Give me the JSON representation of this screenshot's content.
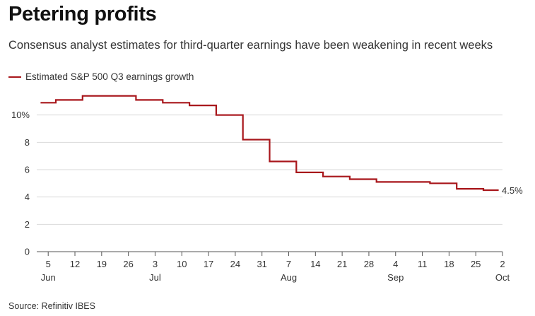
{
  "chart_data": {
    "type": "line",
    "step": true,
    "title": "Petering profits",
    "subtitle": "Consensus analyst estimates for third-quarter earnings have been weakening in recent weeks",
    "source": "Source: Refinitiv IBES",
    "legend": {
      "placement": "top-left",
      "entries": [
        "Estimated S&P 500 Q3 earnings growth"
      ]
    },
    "series": [
      {
        "name": "Estimated S&P 500 Q3 earnings growth",
        "color": "#a8161b",
        "points": [
          {
            "x": "2023-06-03",
            "y": 10.9
          },
          {
            "x": "2023-06-07",
            "y": 11.1
          },
          {
            "x": "2023-06-14",
            "y": 11.4
          },
          {
            "x": "2023-06-28",
            "y": 11.1
          },
          {
            "x": "2023-07-05",
            "y": 10.9
          },
          {
            "x": "2023-07-12",
            "y": 10.7
          },
          {
            "x": "2023-07-19",
            "y": 10.0
          },
          {
            "x": "2023-07-26",
            "y": 8.2
          },
          {
            "x": "2023-08-02",
            "y": 6.6
          },
          {
            "x": "2023-08-09",
            "y": 5.8
          },
          {
            "x": "2023-08-16",
            "y": 5.5
          },
          {
            "x": "2023-08-23",
            "y": 5.3
          },
          {
            "x": "2023-08-30",
            "y": 5.1
          },
          {
            "x": "2023-09-13",
            "y": 5.0
          },
          {
            "x": "2023-09-20",
            "y": 4.6
          },
          {
            "x": "2023-09-27",
            "y": 4.5
          },
          {
            "x": "2023-10-01",
            "y": 4.5
          }
        ]
      }
    ],
    "end_label": "4.5%",
    "x_axis": {
      "tick_labels": [
        {
          "date": "2023-06-05",
          "label": "5",
          "month_label": "Jun"
        },
        {
          "date": "2023-06-12",
          "label": "12"
        },
        {
          "date": "2023-06-19",
          "label": "19"
        },
        {
          "date": "2023-06-26",
          "label": "26"
        },
        {
          "date": "2023-07-03",
          "label": "3",
          "month_label": "Jul"
        },
        {
          "date": "2023-07-10",
          "label": "10"
        },
        {
          "date": "2023-07-17",
          "label": "17"
        },
        {
          "date": "2023-07-24",
          "label": "24"
        },
        {
          "date": "2023-07-31",
          "label": "31"
        },
        {
          "date": "2023-08-07",
          "label": "7",
          "month_label": "Aug"
        },
        {
          "date": "2023-08-14",
          "label": "14"
        },
        {
          "date": "2023-08-21",
          "label": "21"
        },
        {
          "date": "2023-08-28",
          "label": "28"
        },
        {
          "date": "2023-09-04",
          "label": "4",
          "month_label": "Sep"
        },
        {
          "date": "2023-09-11",
          "label": "11"
        },
        {
          "date": "2023-09-18",
          "label": "18"
        },
        {
          "date": "2023-09-25",
          "label": "25"
        },
        {
          "date": "2023-10-02",
          "label": "2",
          "month_label": "Oct"
        }
      ]
    },
    "y_axis": {
      "ylim": [
        0,
        12
      ],
      "ticks": [
        {
          "value": 0,
          "label": "0"
        },
        {
          "value": 2,
          "label": "2"
        },
        {
          "value": 4,
          "label": "4"
        },
        {
          "value": 6,
          "label": "6"
        },
        {
          "value": 8,
          "label": "8"
        },
        {
          "value": 10,
          "label": "10%"
        }
      ]
    },
    "grid": "horizontal",
    "colors": {
      "line": "#a8161b",
      "grid": "#d9d9d9",
      "axis": "#555555"
    }
  }
}
